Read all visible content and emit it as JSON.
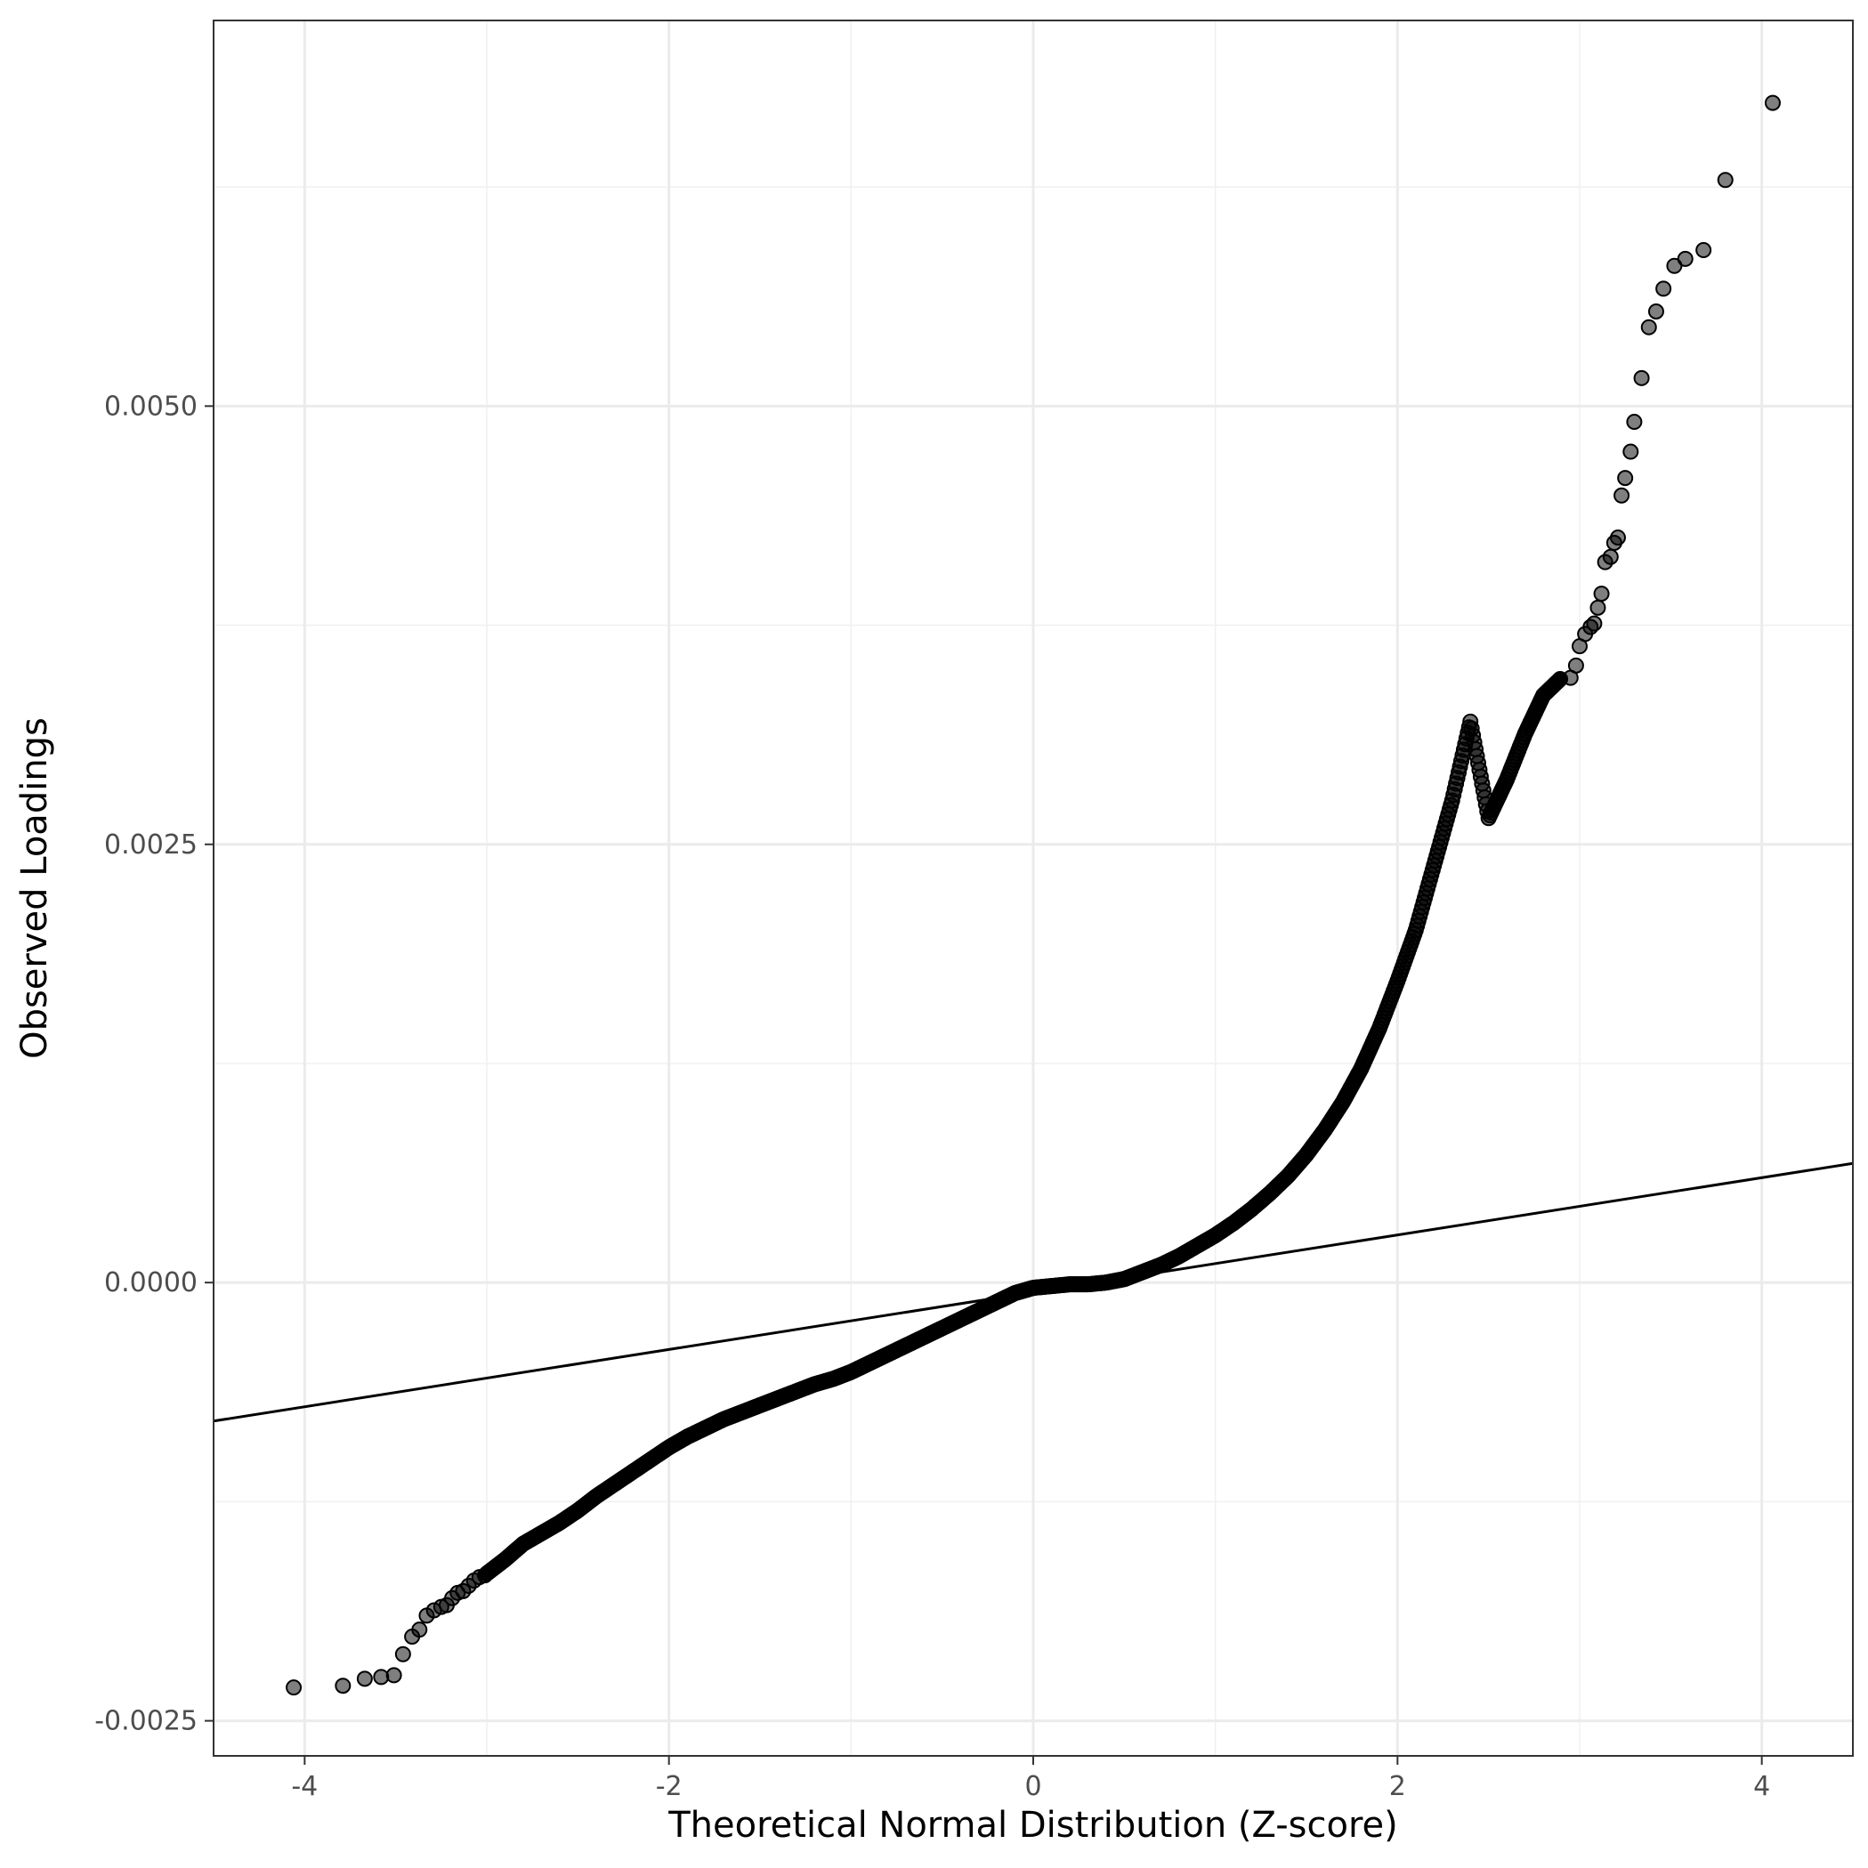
{
  "chart_data": {
    "type": "scatter",
    "title": "",
    "xlabel": "Theoretical Normal Distribution (Z-score)",
    "ylabel": "Observed Loadings",
    "xlim": [
      -4.5,
      4.5
    ],
    "ylim": [
      -0.0027,
      0.0072
    ],
    "x_ticks": [
      -4,
      -2,
      0,
      2,
      4
    ],
    "x_tick_labels": [
      "-4",
      "-2",
      "0",
      "2",
      "4"
    ],
    "y_ticks": [
      -0.0025,
      0.0,
      0.0025,
      0.005
    ],
    "y_tick_labels": [
      "-0.0025",
      "0.0000",
      "0.0025",
      "0.0050"
    ],
    "grid": true,
    "reference_line": {
      "x": [
        -4.5,
        4.5
      ],
      "y": [
        -0.00079,
        0.00068
      ]
    },
    "outlier_points": [
      {
        "x": -4.06,
        "y": -0.00231
      },
      {
        "x": -3.79,
        "y": -0.0023
      },
      {
        "x": -3.67,
        "y": -0.00226
      },
      {
        "x": -3.58,
        "y": -0.00225
      },
      {
        "x": -3.51,
        "y": -0.00224
      },
      {
        "x": -3.46,
        "y": -0.00212
      },
      {
        "x": -3.41,
        "y": -0.00202
      },
      {
        "x": -3.37,
        "y": -0.00198
      },
      {
        "x": -3.33,
        "y": -0.0019
      },
      {
        "x": -3.29,
        "y": -0.00187
      },
      {
        "x": -3.25,
        "y": -0.00185
      },
      {
        "x": -3.22,
        "y": -0.00184
      },
      {
        "x": -3.19,
        "y": -0.0018
      },
      {
        "x": -3.16,
        "y": -0.00177
      },
      {
        "x": -3.13,
        "y": -0.00176
      },
      {
        "x": -3.1,
        "y": -0.00173
      },
      {
        "x": -3.07,
        "y": -0.0017
      },
      {
        "x": -3.04,
        "y": -0.00168
      },
      {
        "x": -3.01,
        "y": -0.00167
      },
      {
        "x": 2.95,
        "y": 0.00345
      },
      {
        "x": 2.98,
        "y": 0.00352
      },
      {
        "x": 3.0,
        "y": 0.00363
      },
      {
        "x": 3.03,
        "y": 0.0037
      },
      {
        "x": 3.06,
        "y": 0.00374
      },
      {
        "x": 3.08,
        "y": 0.00376
      },
      {
        "x": 3.1,
        "y": 0.00385
      },
      {
        "x": 3.12,
        "y": 0.00393
      },
      {
        "x": 3.14,
        "y": 0.00411
      },
      {
        "x": 3.17,
        "y": 0.00414
      },
      {
        "x": 3.19,
        "y": 0.00422
      },
      {
        "x": 3.21,
        "y": 0.00425
      },
      {
        "x": 3.23,
        "y": 0.00449
      },
      {
        "x": 3.25,
        "y": 0.00459
      },
      {
        "x": 3.28,
        "y": 0.00474
      },
      {
        "x": 3.3,
        "y": 0.00491
      },
      {
        "x": 3.34,
        "y": 0.00516
      },
      {
        "x": 3.38,
        "y": 0.00545
      },
      {
        "x": 3.42,
        "y": 0.00554
      },
      {
        "x": 3.46,
        "y": 0.00567
      },
      {
        "x": 3.52,
        "y": 0.0058
      },
      {
        "x": 3.58,
        "y": 0.00584
      },
      {
        "x": 3.68,
        "y": 0.00589
      },
      {
        "x": 3.8,
        "y": 0.00629
      },
      {
        "x": 4.06,
        "y": 0.00673
      }
    ],
    "dense_curve": {
      "x": [
        -3.0,
        -2.9,
        -2.8,
        -2.7,
        -2.6,
        -2.5,
        -2.4,
        -2.3,
        -2.2,
        -2.1,
        -2.0,
        -1.9,
        -1.8,
        -1.7,
        -1.6,
        -1.5,
        -1.4,
        -1.3,
        -1.2,
        -1.1,
        -1.0,
        -0.9,
        -0.8,
        -0.7,
        -0.6,
        -0.5,
        -0.4,
        -0.3,
        -0.2,
        -0.1,
        0.0,
        0.1,
        0.2,
        0.3,
        0.4,
        0.5,
        0.6,
        0.7,
        0.8,
        0.9,
        1.0,
        1.1,
        1.2,
        1.3,
        1.4,
        1.5,
        1.6,
        1.7,
        1.8,
        1.9,
        2.0,
        2.1,
        2.2,
        2.3,
        2.4,
        2.5,
        2.6,
        2.7,
        2.8,
        2.9
      ],
      "y": [
        -0.00166,
        -0.00158,
        -0.00149,
        -0.00143,
        -0.00137,
        -0.0013,
        -0.00122,
        -0.00115,
        -0.00108,
        -0.00101,
        -0.00094,
        -0.00088,
        -0.00083,
        -0.00078,
        -0.00074,
        -0.0007,
        -0.00066,
        -0.00062,
        -0.00058,
        -0.00055,
        -0.00051,
        -0.00046,
        -0.00041,
        -0.00036,
        -0.00031,
        -0.00026,
        -0.00021,
        -0.00016,
        -0.00011,
        -6e-05,
        -3e-05,
        -2e-05,
        -1e-05,
        -1e-05,
        0.0,
        2e-05,
        6e-05,
        0.0001,
        0.00015,
        0.00021,
        0.00027,
        0.00034,
        0.00042,
        0.00051,
        0.00061,
        0.00073,
        0.00087,
        0.00103,
        0.00122,
        0.00145,
        0.00172,
        0.00201,
        0.00238,
        0.00275,
        0.0032,
        0.00265,
        0.00287,
        0.00313,
        0.00335,
        0.00345
      ]
    }
  }
}
